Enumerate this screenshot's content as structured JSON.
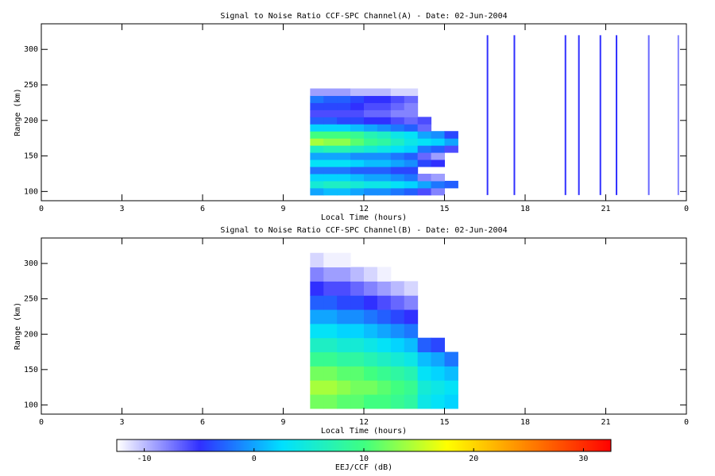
{
  "chart_data": [
    {
      "type": "heatmap",
      "title": "Signal to Noise Ratio CCF-SPC Channel(A) - Date: 02-Jun-2004",
      "xlabel": "Local Time (hours)",
      "ylabel": "Range (km)",
      "xlim": [
        0,
        24
      ],
      "xticks": [
        0,
        3,
        6,
        9,
        12,
        15,
        18,
        21,
        {
          "value": 24,
          "label": "0"
        }
      ],
      "ylim": [
        87,
        336
      ],
      "yticks": [
        100,
        150,
        200,
        250,
        300
      ],
      "x_bins": [
        10,
        10.5,
        11,
        11.5,
        12,
        12.5,
        13,
        13.5,
        14,
        14.5,
        15,
        15.5
      ],
      "y_bins": [
        95,
        105,
        115,
        125,
        135,
        145,
        155,
        165,
        175,
        185,
        195,
        205,
        215,
        225,
        235,
        245
      ],
      "z": [
        [
          0,
          1,
          1,
          0,
          -1,
          -1,
          -2,
          -3,
          -6,
          -8,
          null
        ],
        [
          5,
          6,
          6,
          5,
          4,
          4,
          3,
          2,
          0,
          -2,
          -3
        ],
        [
          2,
          2,
          2,
          1,
          0,
          0,
          -1,
          -2,
          -8,
          -9,
          null
        ],
        [
          -2,
          -2,
          -2,
          -3,
          -3,
          -3,
          -4,
          -4,
          null,
          null,
          null
        ],
        [
          3,
          3,
          3,
          2,
          1,
          1,
          0,
          -1,
          -4,
          -5,
          null
        ],
        [
          0,
          0,
          0,
          -1,
          -1,
          -1,
          -2,
          -3,
          -7,
          -9,
          null
        ],
        [
          6,
          7,
          7,
          6,
          5,
          4,
          3,
          2,
          -2,
          -3,
          -6
        ],
        [
          14,
          13,
          13,
          11,
          9,
          8,
          6,
          4,
          3,
          2,
          0
        ],
        [
          10,
          10,
          10,
          9,
          7,
          6,
          4,
          3,
          0,
          -1,
          -4
        ],
        [
          2,
          2,
          2,
          1,
          0,
          -1,
          -2,
          -3,
          -7,
          null,
          null
        ],
        [
          -3,
          -3,
          -4,
          -4,
          -5,
          -5,
          -6,
          -7,
          -6,
          null,
          null
        ],
        [
          -6,
          -6,
          -6,
          -6,
          -7,
          -7,
          -8,
          -8,
          null,
          null,
          null
        ],
        [
          -4,
          -4,
          -4,
          -5,
          -6,
          -6,
          -7,
          -8,
          null,
          null,
          null
        ],
        [
          -2,
          -3,
          -3,
          -4,
          -5,
          -5,
          -6,
          -7,
          null,
          null,
          null
        ],
        [
          -9,
          -9,
          -9,
          -10,
          -10,
          -10,
          -11,
          -11,
          null,
          null,
          null
        ]
      ],
      "stripes": {
        "x": [
          16.6,
          17.6,
          19.5,
          20.0,
          20.8,
          21.4,
          22.6,
          23.7
        ],
        "values": [
          -5,
          -5,
          -5,
          -5,
          -5,
          -5,
          -7,
          -8
        ],
        "range": [
          95,
          320
        ]
      }
    },
    {
      "type": "heatmap",
      "title": "Signal to Noise Ratio CCF-SPC Channel(B) - Date: 02-Jun-2004",
      "xlabel": "Local Time (hours)",
      "ylabel": "Range (km)",
      "xlim": [
        0,
        24
      ],
      "xticks": [
        0,
        3,
        6,
        9,
        12,
        15,
        18,
        21,
        {
          "value": 24,
          "label": "0"
        }
      ],
      "ylim": [
        87,
        336
      ],
      "yticks": [
        100,
        150,
        200,
        250,
        300
      ],
      "x_bins": [
        10,
        10.5,
        11,
        11.5,
        12,
        12.5,
        13,
        13.5,
        14,
        14.5,
        15,
        15.5
      ],
      "y_bins": [
        95,
        115,
        135,
        155,
        175,
        195,
        215,
        235,
        255,
        275,
        295,
        315
      ],
      "z": [
        [
          12,
          12,
          11,
          11,
          10,
          10,
          9,
          8,
          4,
          3,
          2
        ],
        [
          14,
          14,
          13,
          12,
          12,
          11,
          10,
          9,
          5,
          4,
          3
        ],
        [
          12,
          12,
          11,
          11,
          10,
          9,
          8,
          7,
          3,
          2,
          1
        ],
        [
          9,
          9,
          8,
          8,
          7,
          6,
          5,
          4,
          1,
          0,
          -2
        ],
        [
          6,
          6,
          5,
          5,
          4,
          3,
          2,
          1,
          -3,
          -4,
          null
        ],
        [
          3,
          3,
          2,
          2,
          1,
          0,
          -1,
          -2,
          null,
          null,
          null
        ],
        [
          0,
          0,
          -1,
          -1,
          -2,
          -3,
          -4,
          -5,
          null,
          null,
          null
        ],
        [
          -3,
          -3,
          -4,
          -4,
          -5,
          -6,
          -7,
          -8,
          null,
          null,
          null
        ],
        [
          -5,
          -6,
          -6,
          -7,
          -8,
          -9,
          -10,
          -11,
          null,
          null,
          null
        ],
        [
          -8,
          -9,
          -9,
          -10,
          -11,
          -12,
          null,
          null,
          null,
          null,
          null
        ],
        [
          -11,
          -12,
          -12,
          null,
          null,
          null,
          null,
          null,
          null,
          null,
          null
        ]
      ]
    }
  ],
  "colorbar": {
    "label": "EEJ/CCF (dB)",
    "clim": [
      -12.5,
      32.5
    ],
    "ticks": [
      -10,
      0,
      10,
      20,
      30
    ],
    "colors": [
      "#ffffff",
      "#3030ff",
      "#00e0ff",
      "#40ff80",
      "#ffff00",
      "#ff8000",
      "#ff0000"
    ]
  }
}
